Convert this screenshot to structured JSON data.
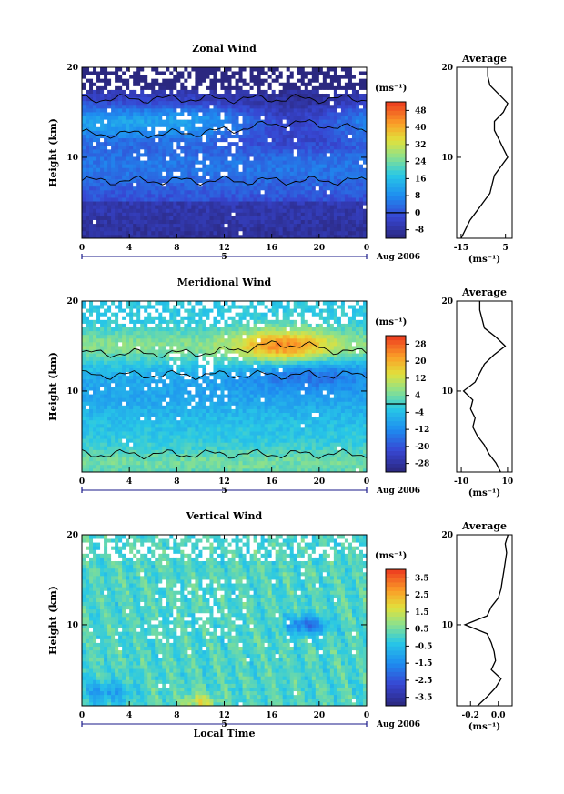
{
  "chart_data": [
    {
      "type": "heatmap",
      "title": "Zonal Wind",
      "ylabel": "Height (km)",
      "xlabel": "",
      "x_ticks": [
        "0",
        "4",
        "8",
        "12",
        "16",
        "20",
        "0"
      ],
      "y_ticks": [
        "10",
        "20"
      ],
      "xlim": [
        0,
        24
      ],
      "ylim": [
        1,
        20
      ],
      "date_marker": "5",
      "month_label": "Aug 2006",
      "colorbar": {
        "unit": "(ms⁻¹)",
        "ticks": [
          "48",
          "40",
          "32",
          "24",
          "16",
          "8",
          "0",
          "-8"
        ],
        "values": [
          48,
          40,
          32,
          24,
          16,
          8,
          0,
          -8
        ],
        "range": [
          -12,
          52
        ],
        "contour_value": 0
      },
      "profile": {
        "title": "Average",
        "x_ticks": [
          "-15",
          "5"
        ],
        "x_tick_values": [
          -15,
          5
        ],
        "xlim": [
          -17,
          8
        ],
        "y_ticks": [
          "10",
          "20"
        ],
        "unit": "(ms⁻¹)",
        "height_km": [
          1.0,
          2,
          3,
          4,
          5,
          6,
          7,
          8,
          9,
          10,
          11,
          12,
          13,
          14,
          15,
          16,
          17,
          18,
          19,
          20
        ],
        "values": [
          -15,
          -13,
          -11,
          -8,
          -5,
          -2,
          -1,
          0,
          3,
          6,
          4,
          2,
          0,
          0,
          4,
          6,
          2,
          -2,
          -3,
          -3
        ]
      }
    },
    {
      "type": "heatmap",
      "title": "Meridional Wind",
      "ylabel": "Height (km)",
      "xlabel": "",
      "x_ticks": [
        "0",
        "4",
        "8",
        "12",
        "16",
        "20",
        "0"
      ],
      "y_ticks": [
        "10",
        "20"
      ],
      "xlim": [
        0,
        24
      ],
      "ylim": [
        1,
        20
      ],
      "date_marker": "5",
      "month_label": "Aug 2006",
      "colorbar": {
        "unit": "(ms⁻¹)",
        "ticks": [
          "28",
          "20",
          "12",
          "4",
          "-4",
          "-12",
          "-20",
          "-28"
        ],
        "values": [
          28,
          20,
          12,
          4,
          -4,
          -12,
          -20,
          -28
        ],
        "range": [
          -32,
          32
        ],
        "contour_value": 0
      },
      "profile": {
        "title": "Average",
        "x_ticks": [
          "-10",
          "10"
        ],
        "x_tick_values": [
          -10,
          10
        ],
        "xlim": [
          -12,
          12
        ],
        "y_ticks": [
          "10",
          "20"
        ],
        "unit": "(ms⁻¹)",
        "height_km": [
          1.0,
          2,
          3,
          4,
          5,
          6,
          7,
          8,
          9,
          10,
          11,
          12,
          13,
          14,
          15,
          16,
          17,
          18,
          19,
          20
        ],
        "values": [
          7,
          5,
          2,
          0,
          -3,
          -5,
          -4,
          -6,
          -5,
          -9,
          -4,
          -2,
          0,
          4,
          9,
          5,
          0,
          -1,
          -2,
          -2
        ]
      }
    },
    {
      "type": "heatmap",
      "title": "Vertical Wind",
      "ylabel": "Height (km)",
      "xlabel": "Local Time",
      "x_ticks": [
        "0",
        "4",
        "8",
        "12",
        "16",
        "20",
        "0"
      ],
      "y_ticks": [
        "10",
        "20"
      ],
      "xlim": [
        0,
        24
      ],
      "ylim": [
        1,
        20
      ],
      "date_marker": "5",
      "month_label": "Aug 2006",
      "colorbar": {
        "unit": "(ms⁻¹)",
        "ticks": [
          "3.5",
          "2.5",
          "1.5",
          "0.5",
          "-0.5",
          "-1.5",
          "-2.5",
          "-3.5"
        ],
        "values": [
          3.5,
          2.5,
          1.5,
          0.5,
          -0.5,
          -1.5,
          -2.5,
          -3.5
        ],
        "range": [
          -4,
          4
        ]
      },
      "profile": {
        "title": "Average",
        "x_ticks": [
          "-0.2",
          "0.0"
        ],
        "x_tick_values": [
          -0.2,
          0.0
        ],
        "xlim": [
          -0.3,
          0.1
        ],
        "y_ticks": [
          "10",
          "20"
        ],
        "unit": "(ms⁻¹)",
        "height_km": [
          1.0,
          2,
          3,
          4,
          5,
          6,
          7,
          8,
          9,
          10,
          11,
          12,
          13,
          14,
          15,
          16,
          17,
          18,
          19,
          20
        ],
        "values": [
          -0.15,
          -0.08,
          -0.02,
          0.02,
          -0.05,
          -0.02,
          -0.03,
          -0.05,
          -0.08,
          -0.24,
          -0.08,
          -0.05,
          0.0,
          0.02,
          0.03,
          0.04,
          0.05,
          0.06,
          0.05,
          0.07
        ]
      }
    }
  ]
}
